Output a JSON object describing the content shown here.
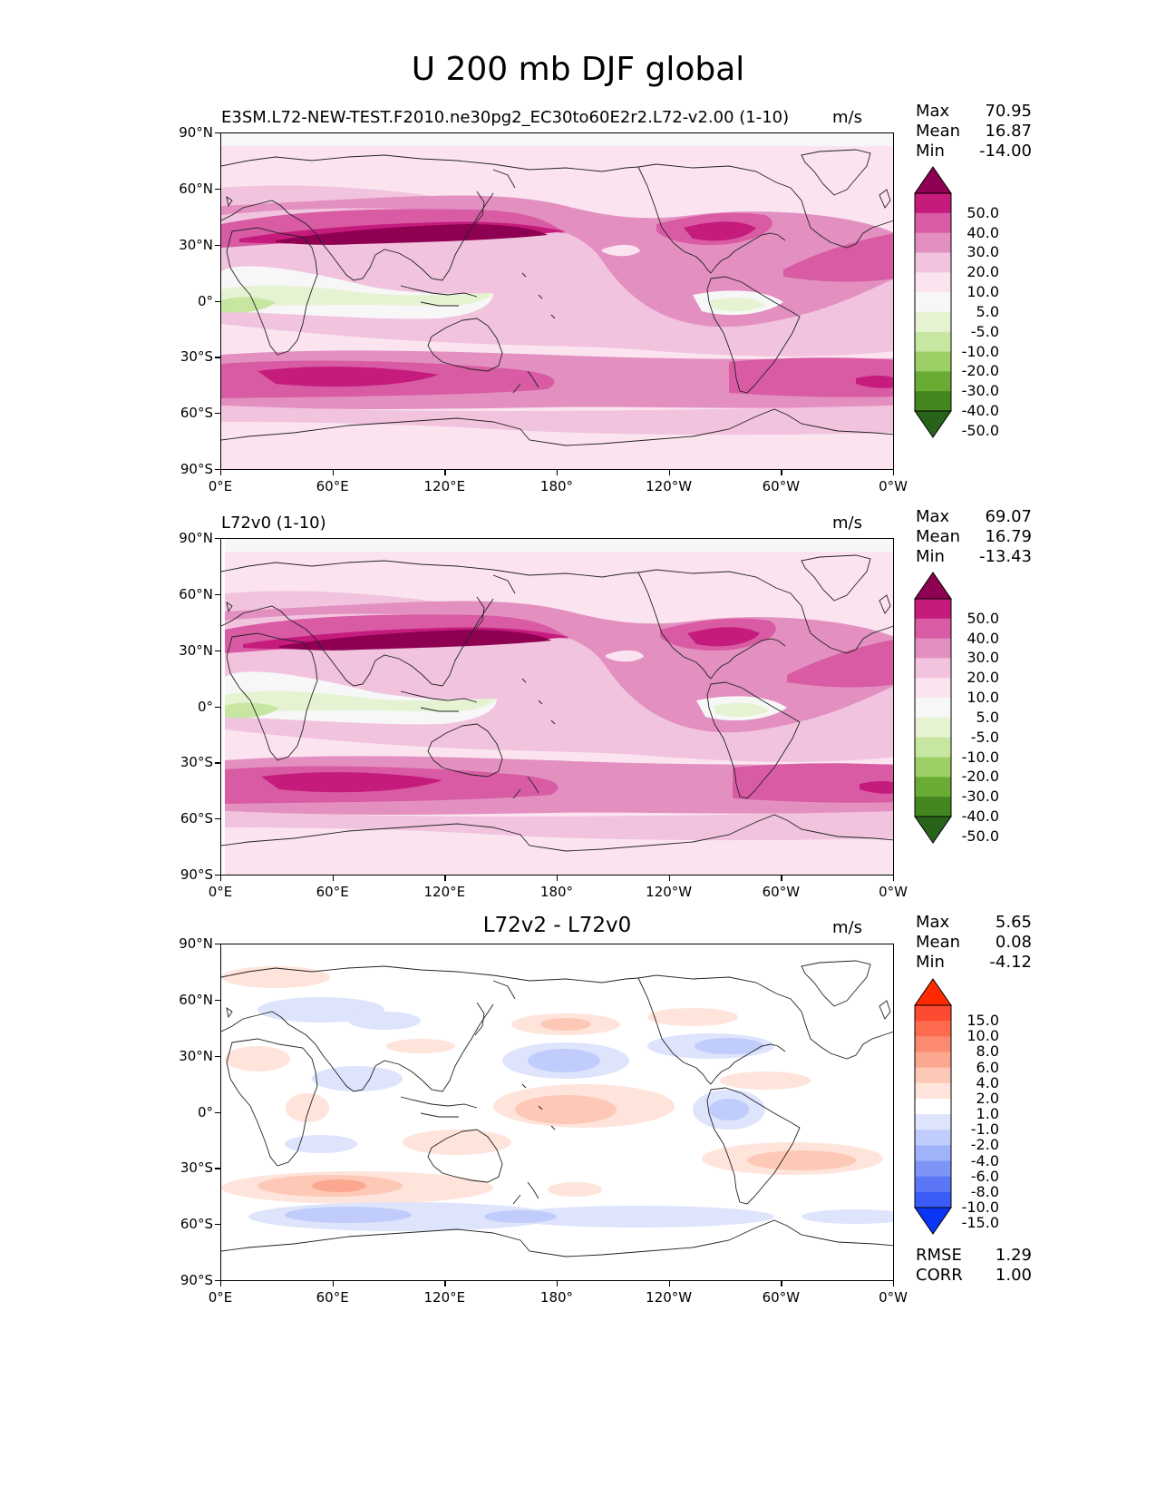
{
  "title": "U 200 mb DJF global",
  "lat_labels": [
    "90°N",
    "60°N",
    "30°N",
    "0°",
    "30°S",
    "60°S",
    "90°S"
  ],
  "lon_labels": [
    "0°E",
    "60°E",
    "120°E",
    "180°",
    "120°W",
    "60°W",
    "0°W"
  ],
  "panels": [
    {
      "title": "E3SM.L72-NEW-TEST.F2010.ne30pg2_EC30to60E2r2.L72-v2.00 (1-10)",
      "units": "m/s",
      "stats": [
        {
          "label": "Max",
          "value": "70.95"
        },
        {
          "label": "Mean",
          "value": "16.87"
        },
        {
          "label": "Min",
          "value": "-14.00"
        }
      ],
      "colorbar": {
        "labels": [
          "50.0",
          "40.0",
          "30.0",
          "20.0",
          "10.0",
          "5.0",
          "-5.0",
          "-10.0",
          "-20.0",
          "-30.0",
          "-40.0",
          "-50.0"
        ],
        "colors": [
          "#8e0152",
          "#c51b7d",
          "#d85ba3",
          "#e390c1",
          "#f1c3de",
          "#fbe4f0",
          "#f7f7f7",
          "#e6f3d2",
          "#c7e6a1",
          "#9ccf65",
          "#6aab34",
          "#43861f",
          "#276419"
        ]
      }
    },
    {
      "title": "L72v0 (1-10)",
      "units": "m/s",
      "stats": [
        {
          "label": "Max",
          "value": "69.07"
        },
        {
          "label": "Mean",
          "value": "16.79"
        },
        {
          "label": "Min",
          "value": "-13.43"
        }
      ],
      "colorbar": {
        "labels": [
          "50.0",
          "40.0",
          "30.0",
          "20.0",
          "10.0",
          "5.0",
          "-5.0",
          "-10.0",
          "-20.0",
          "-30.0",
          "-40.0",
          "-50.0"
        ],
        "colors": [
          "#8e0152",
          "#c51b7d",
          "#d85ba3",
          "#e390c1",
          "#f1c3de",
          "#fbe4f0",
          "#f7f7f7",
          "#e6f3d2",
          "#c7e6a1",
          "#9ccf65",
          "#6aab34",
          "#43861f",
          "#276419"
        ]
      }
    },
    {
      "title": "L72v2 - L72v0",
      "units": "m/s",
      "stats": [
        {
          "label": "Max",
          "value": "5.65"
        },
        {
          "label": "Mean",
          "value": "0.08"
        },
        {
          "label": "Min",
          "value": "-4.12"
        }
      ],
      "metrics": [
        {
          "label": "RMSE",
          "value": "1.29"
        },
        {
          "label": "CORR",
          "value": "1.00"
        }
      ],
      "colorbar": {
        "labels": [
          "15.0",
          "10.0",
          "8.0",
          "6.0",
          "4.0",
          "2.0",
          "1.0",
          "-1.0",
          "-2.0",
          "-4.0",
          "-6.0",
          "-8.0",
          "-10.0",
          "-15.0"
        ],
        "colors": [
          "#ff2a00",
          "#fe4a30",
          "#fd6a4e",
          "#fc8a70",
          "#fca890",
          "#fdc9b6",
          "#fee4da",
          "#ffffff",
          "#dde4fc",
          "#c0ccfb",
          "#a0b2fa",
          "#7e95f8",
          "#5b77f6",
          "#3a5bf5",
          "#0a35f5"
        ]
      }
    }
  ]
}
